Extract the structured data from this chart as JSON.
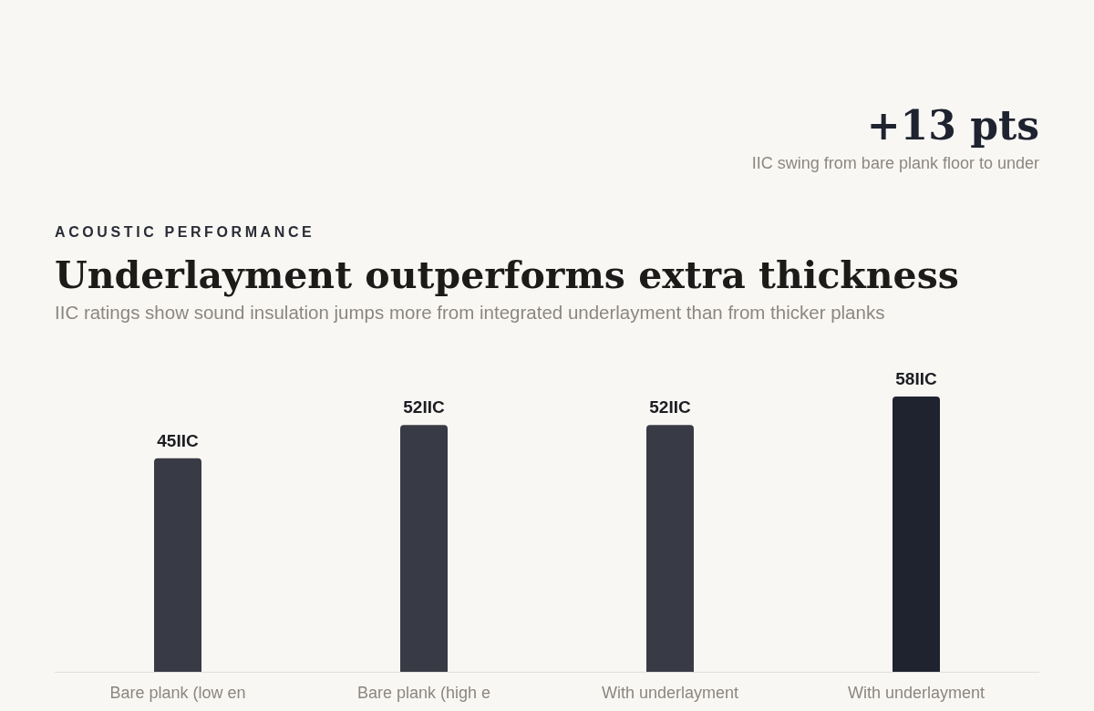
{
  "chart_data": {
    "type": "bar",
    "title": "Underlayment outperforms extra thickness",
    "subtitle": "IIC ratings show sound insulation jumps more from integrated underlayment than from thicker planks",
    "annotations": [
      "ACOUSTIC PERFORMANCE",
      "+13 pts",
      "IIC swing from bare plank floor to under"
    ],
    "categories": [
      "Bare plank (low en",
      "Bare plank (high e",
      "With underlayment",
      "With underlayment"
    ],
    "values": [
      45,
      52,
      52,
      58
    ],
    "value_labels": [
      "45IIC",
      "52IIC",
      "52IIC",
      "58IIC"
    ],
    "colors": [
      "#383b45",
      "#383b45",
      "#383b45",
      "#1f2330"
    ]
  }
}
